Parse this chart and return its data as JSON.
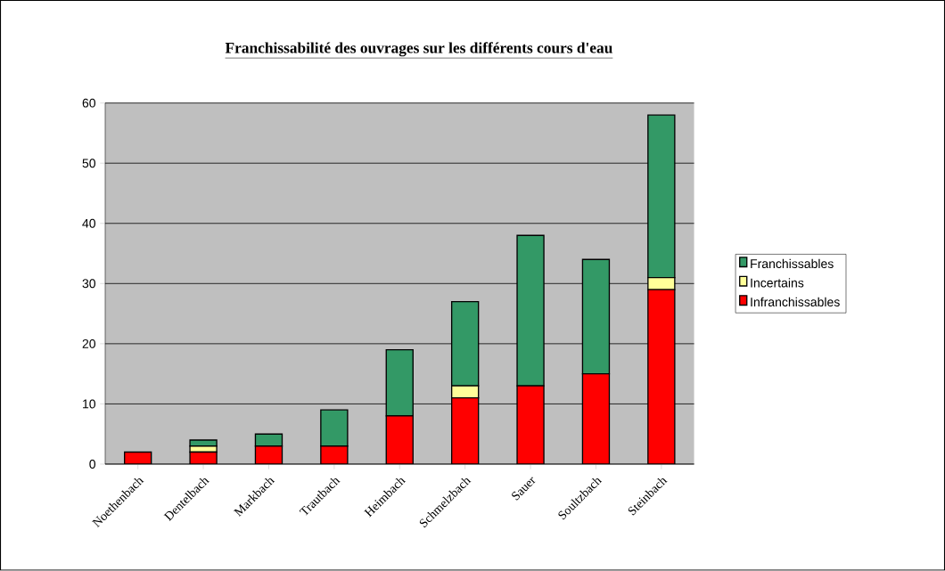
{
  "chart_data": {
    "type": "bar",
    "title": "Franchissabilité des ouvrages sur les différents cours d'eau",
    "categories": [
      "Noethenbach",
      "Dentelbach",
      "Markbach",
      "Trautbach",
      "Heimbach",
      "Schmelzbach",
      "Sauer",
      "Soultzbach",
      "Steinbach"
    ],
    "series": [
      {
        "name": "Infranchissables",
        "color": "#ff0000",
        "values": [
          2,
          2,
          3,
          3,
          8,
          11,
          13,
          15,
          29
        ]
      },
      {
        "name": "Incertains",
        "color": "#ffff99",
        "values": [
          0,
          1,
          0,
          0,
          0,
          2,
          0,
          0,
          2
        ]
      },
      {
        "name": "Franchissables",
        "color": "#339966",
        "values": [
          0,
          1,
          2,
          6,
          11,
          14,
          25,
          19,
          27
        ]
      }
    ],
    "stacked": true,
    "ylim": [
      0,
      60
    ],
    "yticks": [
      0,
      10,
      20,
      30,
      40,
      50,
      60
    ],
    "grid": "y",
    "legend": "right"
  }
}
